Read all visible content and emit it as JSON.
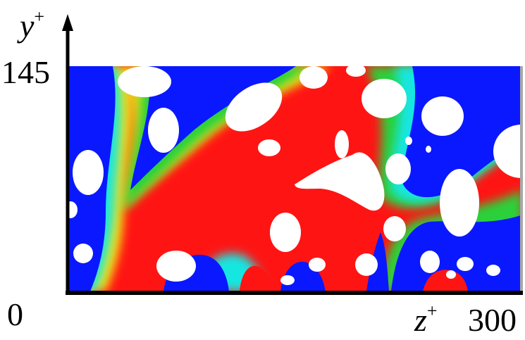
{
  "figure": {
    "y_axis": {
      "symbol": "y",
      "superscript": "+",
      "max_label": "145"
    },
    "x_axis": {
      "symbol": "z",
      "superscript": "+",
      "min_label": "0",
      "max_label": "300"
    },
    "colors": {
      "low": "#0a18ff",
      "cyan": "#16e6e0",
      "green": "#2ad13a",
      "yellow": "#f2e619",
      "high": "#ff1414",
      "blank": "#ffffff",
      "axis": "#000000"
    }
  }
}
